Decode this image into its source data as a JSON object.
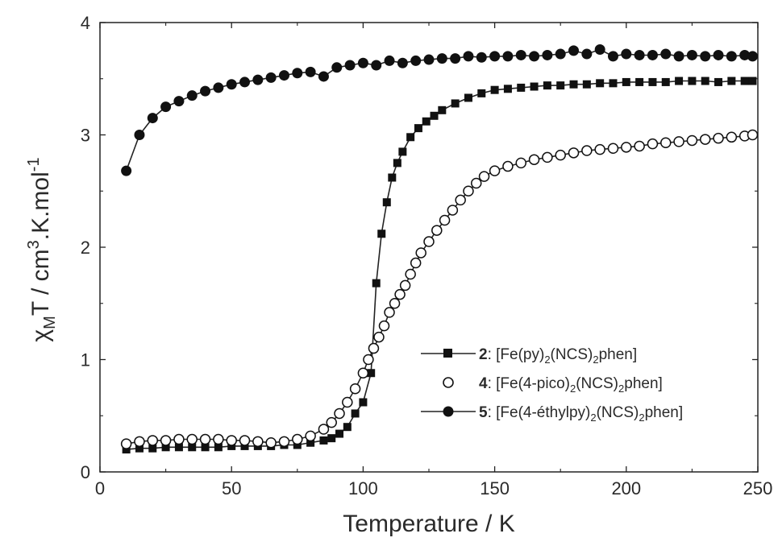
{
  "chart_data": {
    "type": "scatter",
    "title": "",
    "xlabel": "Temperature / K",
    "ylabel": {
      "chi": "χ",
      "chi_sub": "M",
      "t_unit": "T / cm",
      "unit_sup": "3",
      "unit_mid": ".K.mol",
      "unit_sup2": "-1"
    },
    "xlim": [
      0,
      250
    ],
    "ylim": [
      0,
      4
    ],
    "xticks": [
      "0",
      "50",
      "100",
      "150",
      "200",
      "250"
    ],
    "yticks": [
      "0",
      "1",
      "2",
      "3",
      "4"
    ],
    "grid": false,
    "legend_position": "lower-right",
    "series": [
      {
        "key": "s2",
        "marker": "filled-square",
        "legend": {
          "num": "2",
          "pre": ": [Fe(py)",
          "sub1": "2",
          "mid": "(NCS)",
          "sub2": "2",
          "post": "phen]"
        },
        "x": [
          10,
          15,
          20,
          25,
          30,
          35,
          40,
          45,
          50,
          55,
          60,
          65,
          70,
          75,
          80,
          85,
          88,
          91,
          94,
          97,
          100,
          103,
          105,
          107,
          109,
          111,
          113,
          115,
          118,
          121,
          124,
          127,
          130,
          135,
          140,
          145,
          150,
          155,
          160,
          165,
          170,
          175,
          180,
          185,
          190,
          195,
          200,
          205,
          210,
          215,
          220,
          225,
          230,
          235,
          240,
          245,
          248
        ],
        "y": [
          0.2,
          0.21,
          0.21,
          0.22,
          0.22,
          0.22,
          0.22,
          0.22,
          0.23,
          0.23,
          0.23,
          0.23,
          0.24,
          0.24,
          0.26,
          0.28,
          0.3,
          0.34,
          0.4,
          0.52,
          0.62,
          0.88,
          1.68,
          2.12,
          2.4,
          2.62,
          2.75,
          2.85,
          2.98,
          3.06,
          3.12,
          3.17,
          3.22,
          3.28,
          3.33,
          3.37,
          3.4,
          3.41,
          3.42,
          3.43,
          3.44,
          3.44,
          3.45,
          3.45,
          3.46,
          3.46,
          3.47,
          3.47,
          3.47,
          3.47,
          3.48,
          3.48,
          3.48,
          3.47,
          3.48,
          3.48,
          3.48
        ]
      },
      {
        "key": "s4",
        "marker": "open-circle",
        "legend": {
          "num": "4",
          "pre": ": [Fe(4-pico)",
          "sub1": "2",
          "mid": "(NCS)",
          "sub2": "2",
          "post": "phen]"
        },
        "x": [
          10,
          15,
          20,
          25,
          30,
          35,
          40,
          45,
          50,
          55,
          60,
          65,
          70,
          75,
          80,
          85,
          88,
          91,
          94,
          97,
          100,
          102,
          104,
          106,
          108,
          110,
          112,
          114,
          116,
          118,
          120,
          122,
          125,
          128,
          131,
          134,
          137,
          140,
          143,
          146,
          150,
          155,
          160,
          165,
          170,
          175,
          180,
          185,
          190,
          195,
          200,
          205,
          210,
          215,
          220,
          225,
          230,
          235,
          240,
          245,
          248
        ],
        "y": [
          0.25,
          0.27,
          0.28,
          0.28,
          0.29,
          0.29,
          0.29,
          0.29,
          0.28,
          0.28,
          0.27,
          0.26,
          0.27,
          0.29,
          0.32,
          0.38,
          0.44,
          0.52,
          0.62,
          0.74,
          0.88,
          1.0,
          1.1,
          1.2,
          1.3,
          1.42,
          1.5,
          1.58,
          1.66,
          1.76,
          1.86,
          1.95,
          2.05,
          2.15,
          2.24,
          2.33,
          2.42,
          2.5,
          2.57,
          2.63,
          2.68,
          2.72,
          2.75,
          2.78,
          2.8,
          2.82,
          2.84,
          2.86,
          2.87,
          2.88,
          2.89,
          2.9,
          2.92,
          2.93,
          2.94,
          2.95,
          2.96,
          2.97,
          2.98,
          2.99,
          3.0
        ]
      },
      {
        "key": "s5",
        "marker": "filled-circle",
        "legend": {
          "num": "5",
          "pre": ": [Fe(4-éthylpy)",
          "sub1": "2",
          "mid": "(NCS)",
          "sub2": "2",
          "post": "phen]"
        },
        "x": [
          10,
          15,
          20,
          25,
          30,
          35,
          40,
          45,
          50,
          55,
          60,
          65,
          70,
          75,
          80,
          85,
          90,
          95,
          100,
          105,
          110,
          115,
          120,
          125,
          130,
          135,
          140,
          145,
          150,
          155,
          160,
          165,
          170,
          175,
          180,
          185,
          190,
          195,
          200,
          205,
          210,
          215,
          220,
          225,
          230,
          235,
          240,
          245,
          248
        ],
        "y": [
          2.68,
          3.0,
          3.15,
          3.25,
          3.3,
          3.35,
          3.39,
          3.42,
          3.45,
          3.47,
          3.49,
          3.51,
          3.53,
          3.55,
          3.56,
          3.52,
          3.6,
          3.62,
          3.64,
          3.62,
          3.66,
          3.64,
          3.66,
          3.67,
          3.68,
          3.68,
          3.7,
          3.69,
          3.7,
          3.7,
          3.71,
          3.7,
          3.71,
          3.72,
          3.75,
          3.72,
          3.76,
          3.7,
          3.72,
          3.71,
          3.71,
          3.72,
          3.7,
          3.71,
          3.7,
          3.71,
          3.7,
          3.71,
          3.7
        ]
      }
    ]
  }
}
